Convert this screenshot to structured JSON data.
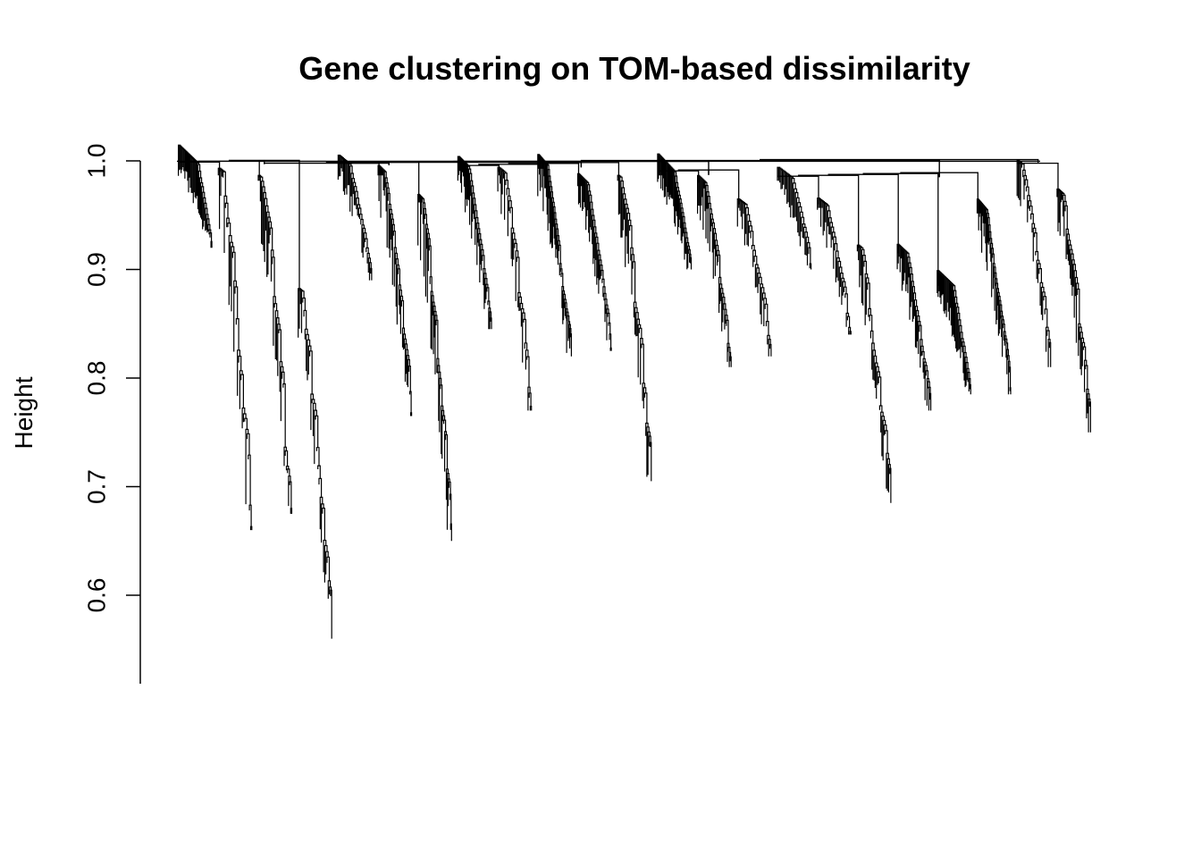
{
  "chart_data": {
    "type": "dendrogram",
    "title": "Gene clustering on TOM-based dissimilarity",
    "ylabel": "Height",
    "xlabel": "",
    "ylim": [
      0.52,
      1.0
    ],
    "yticks": [
      "0.6",
      "0.7",
      "0.8",
      "0.9",
      "1.0"
    ],
    "ytick_values": [
      0.6,
      0.7,
      0.8,
      0.9,
      1.0
    ],
    "grid": false,
    "legend": "none",
    "line_color": "#000000",
    "leaf_count_estimate": 2000,
    "top_merge_height": 0.998,
    "clusters": [
      {
        "top": 0.998,
        "min": 0.92
      },
      {
        "top": 0.99,
        "min": 0.66
      },
      {
        "top": 0.985,
        "min": 0.675
      },
      {
        "top": 0.88,
        "min": 0.56
      },
      {
        "top": 0.997,
        "min": 0.89
      },
      {
        "top": 0.99,
        "min": 0.765
      },
      {
        "top": 0.965,
        "min": 0.65
      },
      {
        "top": 0.995,
        "min": 0.845
      },
      {
        "top": 0.99,
        "min": 0.77
      },
      {
        "top": 0.996,
        "min": 0.82
      },
      {
        "top": 0.98,
        "min": 0.825
      },
      {
        "top": 0.985,
        "min": 0.705
      },
      {
        "top": 0.99,
        "min": 0.9
      },
      {
        "top": 0.98,
        "min": 0.81
      },
      {
        "top": 0.96,
        "min": 0.82
      },
      {
        "top": 0.985,
        "min": 0.9
      },
      {
        "top": 0.96,
        "min": 0.84
      },
      {
        "top": 0.92,
        "min": 0.685
      },
      {
        "top": 0.915,
        "min": 0.77
      },
      {
        "top": 0.885,
        "min": 0.785
      },
      {
        "top": 0.955,
        "min": 0.785
      },
      {
        "top": 0.997,
        "min": 0.81
      },
      {
        "top": 0.97,
        "min": 0.75
      }
    ]
  }
}
